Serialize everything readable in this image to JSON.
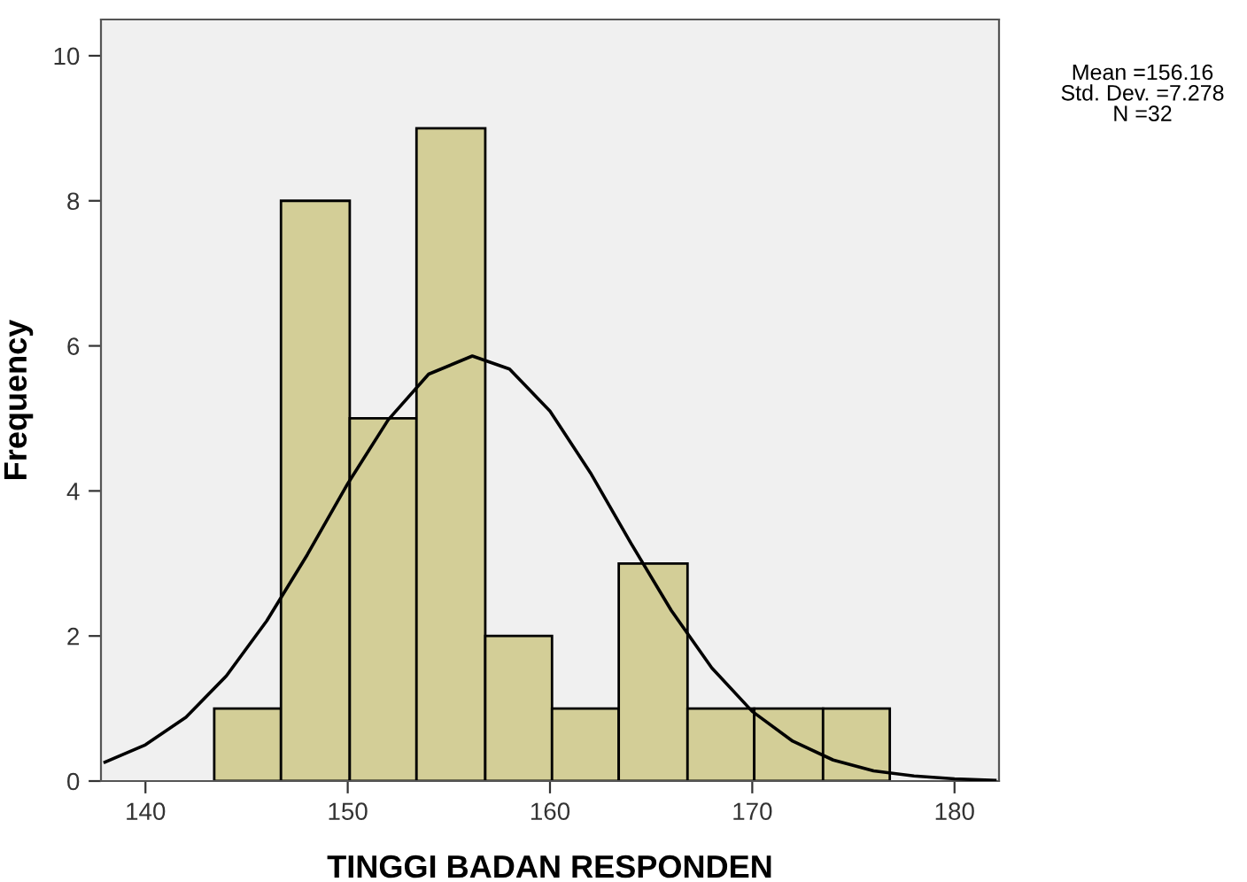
{
  "chart_data": {
    "type": "histogram",
    "xlabel": "TINGGI BADAN RESPONDEN",
    "ylabel": "Frequency",
    "bins": [
      143.4,
      146.7,
      150.1,
      153.4,
      156.8,
      160.1,
      163.4,
      166.8,
      170.1,
      173.5,
      176.8
    ],
    "values": [
      1,
      8,
      5,
      9,
      2,
      1,
      3,
      1,
      1,
      1
    ],
    "color": "#d3ce97",
    "series": [
      {
        "type": "line",
        "color": "#000000",
        "x": [
          138,
          140,
          142,
          144,
          146,
          148,
          150,
          152,
          154,
          156.16,
          158,
          160,
          162,
          164,
          166,
          168,
          170,
          172,
          174,
          176,
          178,
          180,
          182
        ],
        "values": [
          0.26,
          0.5,
          0.88,
          1.45,
          2.21,
          3.12,
          4.1,
          4.98,
          5.61,
          5.86,
          5.68,
          5.1,
          4.25,
          3.28,
          2.35,
          1.56,
          0.96,
          0.55,
          0.29,
          0.14,
          0.07,
          0.03,
          0.01
        ]
      }
    ],
    "xlim": [
      137.8,
      182.2
    ],
    "xticks": [
      140,
      150,
      160,
      170,
      180
    ],
    "ylim": [
      0,
      10.5
    ],
    "yticks": [
      0,
      2,
      4,
      6,
      8,
      10
    ],
    "grid": false,
    "marker": "none",
    "annotations": [
      "Mean =156.16",
      "Std. Dev. =7.278",
      "N =32"
    ]
  }
}
